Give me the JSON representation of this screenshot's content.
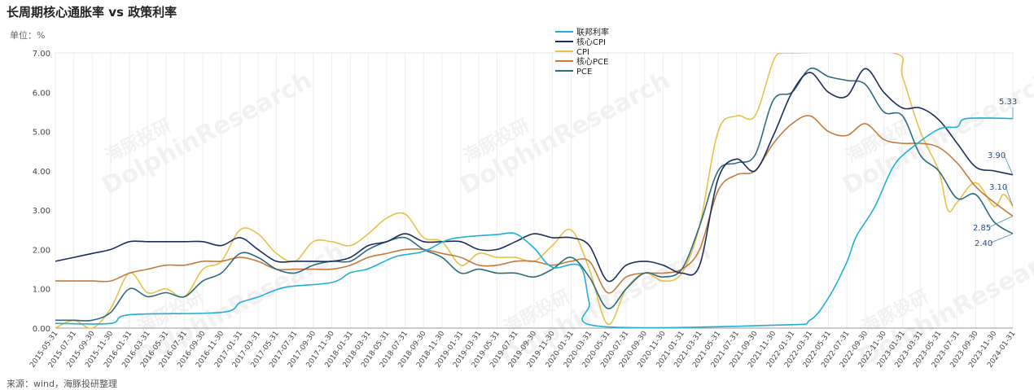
{
  "header": {
    "title": "长周期核心通胀率 vs 政策利率",
    "unit": "单位：%"
  },
  "footer": {
    "source": "来源：wind，海豚投研整理"
  },
  "watermark": {
    "cn": "海豚投研",
    "en": "DolphinResearch"
  },
  "chart_data": {
    "type": "line",
    "title": "长周期核心通胀率 vs 政策利率",
    "ylabel": "单位：%",
    "ylim": [
      0,
      7
    ],
    "yticks": [
      "0.00",
      "1.00",
      "2.00",
      "3.00",
      "4.00",
      "5.00",
      "6.00",
      "7.00"
    ],
    "grid": true,
    "legend_position": "top-center",
    "x_start": "2015-05-31",
    "x_end": "2024-01-31",
    "xtick_labels": [
      "2015-05-31",
      "2015-07-31",
      "2015-09-30",
      "2015-11-30",
      "2016-01-31",
      "2016-03-31",
      "2016-05-31",
      "2016-07-31",
      "2016-09-30",
      "2016-11-30",
      "2017-01-31",
      "2017-03-31",
      "2017-05-31",
      "2017-07-31",
      "2017-09-30",
      "2017-11-30",
      "2018-01-31",
      "2018-03-31",
      "2018-05-31",
      "2018-07-31",
      "2018-09-30",
      "2018-11-30",
      "2019-01-31",
      "2019-03-31",
      "2019-05-31",
      "2019-07-31",
      "2019-09-30",
      "2019-11-30",
      "2020-01-31",
      "2020-03-31",
      "2020-05-31",
      "2020-07-31",
      "2020-09-30",
      "2020-11-30",
      "2021-01-31",
      "2021-03-31",
      "2021-05-31",
      "2021-07-31",
      "2021-09-30",
      "2021-11-30",
      "2022-01-31",
      "2022-03-31",
      "2022-05-31",
      "2022-07-31",
      "2022-09-30",
      "2022-11-30",
      "2023-01-31",
      "2023-03-31",
      "2023-05-31",
      "2023-07-31",
      "2023-09-30",
      "2023-11-30",
      "2024-01-31"
    ],
    "series": [
      {
        "name": "联邦利率",
        "color": "#1fb0d6",
        "end_label": "5.33",
        "points": [
          [
            "2015-05-31",
            0.12
          ],
          [
            "2015-11-30",
            0.12
          ],
          [
            "2016-01-31",
            0.34
          ],
          [
            "2016-11-30",
            0.4
          ],
          [
            "2017-01-31",
            0.65
          ],
          [
            "2017-03-31",
            0.79
          ],
          [
            "2017-06-30",
            1.04
          ],
          [
            "2017-11-30",
            1.16
          ],
          [
            "2018-01-31",
            1.41
          ],
          [
            "2018-03-31",
            1.51
          ],
          [
            "2018-06-30",
            1.82
          ],
          [
            "2018-09-30",
            1.95
          ],
          [
            "2018-12-31",
            2.27
          ],
          [
            "2019-05-31",
            2.38
          ],
          [
            "2019-07-31",
            2.4
          ],
          [
            "2019-09-30",
            2.04
          ],
          [
            "2019-11-30",
            1.55
          ],
          [
            "2020-02-29",
            1.58
          ],
          [
            "2020-03-31",
            0.65
          ],
          [
            "2020-04-30",
            0.05
          ],
          [
            "2021-12-31",
            0.08
          ],
          [
            "2022-03-31",
            0.2
          ],
          [
            "2022-05-31",
            0.77
          ],
          [
            "2022-07-31",
            1.68
          ],
          [
            "2022-08-31",
            2.33
          ],
          [
            "2022-10-31",
            3.08
          ],
          [
            "2022-12-31",
            4.1
          ],
          [
            "2023-02-28",
            4.57
          ],
          [
            "2023-05-31",
            5.06
          ],
          [
            "2023-07-31",
            5.12
          ],
          [
            "2023-08-31",
            5.33
          ],
          [
            "2024-01-31",
            5.33
          ]
        ]
      },
      {
        "name": "核心CPI",
        "color": "#1c2e5e",
        "end_label": "3.90",
        "points": [
          [
            "2015-05-31",
            1.7
          ],
          [
            "2015-07-31",
            1.8
          ],
          [
            "2015-09-30",
            1.9
          ],
          [
            "2015-11-30",
            2.0
          ],
          [
            "2016-01-31",
            2.2
          ],
          [
            "2016-03-31",
            2.2
          ],
          [
            "2016-05-31",
            2.2
          ],
          [
            "2016-07-31",
            2.2
          ],
          [
            "2016-09-30",
            2.2
          ],
          [
            "2016-11-30",
            2.1
          ],
          [
            "2017-01-31",
            2.3
          ],
          [
            "2017-03-31",
            2.0
          ],
          [
            "2017-05-31",
            1.7
          ],
          [
            "2017-07-31",
            1.7
          ],
          [
            "2017-09-30",
            1.7
          ],
          [
            "2017-11-30",
            1.7
          ],
          [
            "2018-01-31",
            1.8
          ],
          [
            "2018-03-31",
            2.1
          ],
          [
            "2018-05-31",
            2.2
          ],
          [
            "2018-07-31",
            2.4
          ],
          [
            "2018-09-30",
            2.2
          ],
          [
            "2018-11-30",
            2.2
          ],
          [
            "2019-01-31",
            2.2
          ],
          [
            "2019-03-31",
            2.0
          ],
          [
            "2019-05-31",
            2.0
          ],
          [
            "2019-07-31",
            2.2
          ],
          [
            "2019-09-30",
            2.4
          ],
          [
            "2019-11-30",
            2.3
          ],
          [
            "2020-01-31",
            2.3
          ],
          [
            "2020-03-31",
            2.1
          ],
          [
            "2020-05-31",
            1.2
          ],
          [
            "2020-07-31",
            1.6
          ],
          [
            "2020-09-30",
            1.7
          ],
          [
            "2020-11-30",
            1.6
          ],
          [
            "2021-01-31",
            1.4
          ],
          [
            "2021-03-31",
            1.6
          ],
          [
            "2021-05-31",
            3.8
          ],
          [
            "2021-07-31",
            4.3
          ],
          [
            "2021-09-30",
            4.0
          ],
          [
            "2021-11-30",
            4.9
          ],
          [
            "2022-01-31",
            6.0
          ],
          [
            "2022-03-31",
            6.5
          ],
          [
            "2022-05-31",
            6.0
          ],
          [
            "2022-07-31",
            5.9
          ],
          [
            "2022-09-30",
            6.6
          ],
          [
            "2022-11-30",
            6.0
          ],
          [
            "2023-01-31",
            5.6
          ],
          [
            "2023-03-31",
            5.6
          ],
          [
            "2023-05-31",
            5.3
          ],
          [
            "2023-07-31",
            4.7
          ],
          [
            "2023-09-30",
            4.1
          ],
          [
            "2023-11-30",
            4.0
          ],
          [
            "2024-01-31",
            3.9
          ]
        ]
      },
      {
        "name": "CPI",
        "color": "#e8c14a",
        "end_label": "3.10",
        "points": [
          [
            "2015-05-31",
            0.0
          ],
          [
            "2015-07-31",
            0.2
          ],
          [
            "2015-09-30",
            0.0
          ],
          [
            "2015-11-30",
            0.5
          ],
          [
            "2016-01-31",
            1.4
          ],
          [
            "2016-03-31",
            0.9
          ],
          [
            "2016-05-31",
            1.0
          ],
          [
            "2016-07-31",
            0.8
          ],
          [
            "2016-09-30",
            1.5
          ],
          [
            "2016-11-30",
            1.7
          ],
          [
            "2017-01-31",
            2.5
          ],
          [
            "2017-03-31",
            2.4
          ],
          [
            "2017-05-31",
            1.9
          ],
          [
            "2017-07-31",
            1.7
          ],
          [
            "2017-09-30",
            2.2
          ],
          [
            "2017-11-30",
            2.2
          ],
          [
            "2018-01-31",
            2.1
          ],
          [
            "2018-03-31",
            2.4
          ],
          [
            "2018-05-31",
            2.8
          ],
          [
            "2018-07-31",
            2.9
          ],
          [
            "2018-09-30",
            2.3
          ],
          [
            "2018-11-30",
            2.2
          ],
          [
            "2019-01-31",
            1.6
          ],
          [
            "2019-03-31",
            1.9
          ],
          [
            "2019-05-31",
            1.8
          ],
          [
            "2019-07-31",
            1.8
          ],
          [
            "2019-09-30",
            1.7
          ],
          [
            "2019-11-30",
            2.1
          ],
          [
            "2020-01-31",
            2.5
          ],
          [
            "2020-03-31",
            1.5
          ],
          [
            "2020-05-31",
            0.1
          ],
          [
            "2020-07-31",
            1.0
          ],
          [
            "2020-09-30",
            1.4
          ],
          [
            "2020-11-30",
            1.2
          ],
          [
            "2021-01-31",
            1.4
          ],
          [
            "2021-03-31",
            2.6
          ],
          [
            "2021-05-31",
            5.0
          ],
          [
            "2021-07-31",
            5.4
          ],
          [
            "2021-09-30",
            5.4
          ],
          [
            "2021-11-30",
            6.8
          ],
          [
            "2021-12-31",
            7.0
          ],
          [
            "2022-01-31",
            7.0
          ],
          [
            "2022-12-31",
            7.0
          ],
          [
            "2023-01-31",
            6.4
          ],
          [
            "2023-03-31",
            5.0
          ],
          [
            "2023-05-31",
            4.0
          ],
          [
            "2023-06-30",
            3.0
          ],
          [
            "2023-07-31",
            3.2
          ],
          [
            "2023-09-30",
            3.7
          ],
          [
            "2023-11-30",
            3.1
          ],
          [
            "2023-12-31",
            3.4
          ],
          [
            "2024-01-31",
            3.1
          ]
        ]
      },
      {
        "name": "核心PCE",
        "color": "#c47a3a",
        "end_label": "2.85",
        "points": [
          [
            "2015-05-31",
            1.2
          ],
          [
            "2015-07-31",
            1.2
          ],
          [
            "2015-09-30",
            1.2
          ],
          [
            "2015-11-30",
            1.2
          ],
          [
            "2016-01-31",
            1.4
          ],
          [
            "2016-03-31",
            1.5
          ],
          [
            "2016-05-31",
            1.6
          ],
          [
            "2016-07-31",
            1.6
          ],
          [
            "2016-09-30",
            1.7
          ],
          [
            "2016-11-30",
            1.7
          ],
          [
            "2017-01-31",
            1.8
          ],
          [
            "2017-03-31",
            1.7
          ],
          [
            "2017-05-31",
            1.5
          ],
          [
            "2017-07-31",
            1.5
          ],
          [
            "2017-09-30",
            1.5
          ],
          [
            "2017-11-30",
            1.5
          ],
          [
            "2018-01-31",
            1.6
          ],
          [
            "2018-03-31",
            1.8
          ],
          [
            "2018-05-31",
            1.9
          ],
          [
            "2018-07-31",
            2.0
          ],
          [
            "2018-09-30",
            2.0
          ],
          [
            "2018-11-30",
            1.9
          ],
          [
            "2019-01-31",
            1.8
          ],
          [
            "2019-03-31",
            1.6
          ],
          [
            "2019-05-31",
            1.6
          ],
          [
            "2019-07-31",
            1.7
          ],
          [
            "2019-09-30",
            1.7
          ],
          [
            "2019-11-30",
            1.6
          ],
          [
            "2020-01-31",
            1.7
          ],
          [
            "2020-03-31",
            1.7
          ],
          [
            "2020-05-31",
            0.9
          ],
          [
            "2020-07-31",
            1.3
          ],
          [
            "2020-09-30",
            1.4
          ],
          [
            "2020-11-30",
            1.4
          ],
          [
            "2021-01-31",
            1.5
          ],
          [
            "2021-03-31",
            2.0
          ],
          [
            "2021-05-31",
            3.5
          ],
          [
            "2021-07-31",
            3.9
          ],
          [
            "2021-09-30",
            4.0
          ],
          [
            "2021-11-30",
            4.7
          ],
          [
            "2022-01-31",
            5.2
          ],
          [
            "2022-03-31",
            5.4
          ],
          [
            "2022-05-31",
            5.0
          ],
          [
            "2022-07-31",
            4.9
          ],
          [
            "2022-09-30",
            5.2
          ],
          [
            "2022-11-30",
            4.8
          ],
          [
            "2023-01-31",
            4.7
          ],
          [
            "2023-03-31",
            4.7
          ],
          [
            "2023-05-31",
            4.6
          ],
          [
            "2023-07-31",
            4.2
          ],
          [
            "2023-09-30",
            3.6
          ],
          [
            "2023-11-30",
            3.2
          ],
          [
            "2024-01-31",
            2.85
          ]
        ]
      },
      {
        "name": "PCE",
        "color": "#2e6b7e",
        "end_label": "2.40",
        "points": [
          [
            "2015-05-31",
            0.2
          ],
          [
            "2015-07-31",
            0.2
          ],
          [
            "2015-09-30",
            0.2
          ],
          [
            "2015-11-30",
            0.4
          ],
          [
            "2016-01-31",
            1.0
          ],
          [
            "2016-03-31",
            0.8
          ],
          [
            "2016-05-31",
            0.9
          ],
          [
            "2016-07-31",
            0.8
          ],
          [
            "2016-09-30",
            1.2
          ],
          [
            "2016-11-30",
            1.4
          ],
          [
            "2017-01-31",
            1.9
          ],
          [
            "2017-03-31",
            1.8
          ],
          [
            "2017-05-31",
            1.5
          ],
          [
            "2017-07-31",
            1.4
          ],
          [
            "2017-09-30",
            1.6
          ],
          [
            "2017-11-30",
            1.7
          ],
          [
            "2018-01-31",
            1.7
          ],
          [
            "2018-03-31",
            2.0
          ],
          [
            "2018-05-31",
            2.2
          ],
          [
            "2018-07-31",
            2.3
          ],
          [
            "2018-09-30",
            2.0
          ],
          [
            "2018-11-30",
            1.8
          ],
          [
            "2019-01-31",
            1.4
          ],
          [
            "2019-03-31",
            1.5
          ],
          [
            "2019-05-31",
            1.4
          ],
          [
            "2019-07-31",
            1.4
          ],
          [
            "2019-09-30",
            1.3
          ],
          [
            "2019-11-30",
            1.5
          ],
          [
            "2020-01-31",
            1.8
          ],
          [
            "2020-03-31",
            1.3
          ],
          [
            "2020-05-31",
            0.5
          ],
          [
            "2020-07-31",
            1.0
          ],
          [
            "2020-09-30",
            1.4
          ],
          [
            "2020-11-30",
            1.3
          ],
          [
            "2021-01-31",
            1.5
          ],
          [
            "2021-03-31",
            2.6
          ],
          [
            "2021-05-31",
            4.0
          ],
          [
            "2021-07-31",
            4.2
          ],
          [
            "2021-09-30",
            4.4
          ],
          [
            "2021-11-30",
            5.8
          ],
          [
            "2022-01-31",
            6.0
          ],
          [
            "2022-03-31",
            6.6
          ],
          [
            "2022-05-31",
            6.4
          ],
          [
            "2022-07-31",
            6.3
          ],
          [
            "2022-09-30",
            6.2
          ],
          [
            "2022-11-30",
            5.5
          ],
          [
            "2023-01-31",
            5.4
          ],
          [
            "2023-03-31",
            4.4
          ],
          [
            "2023-05-31",
            4.0
          ],
          [
            "2023-07-31",
            3.3
          ],
          [
            "2023-09-30",
            3.4
          ],
          [
            "2023-11-30",
            2.7
          ],
          [
            "2024-01-31",
            2.4
          ]
        ]
      }
    ]
  }
}
